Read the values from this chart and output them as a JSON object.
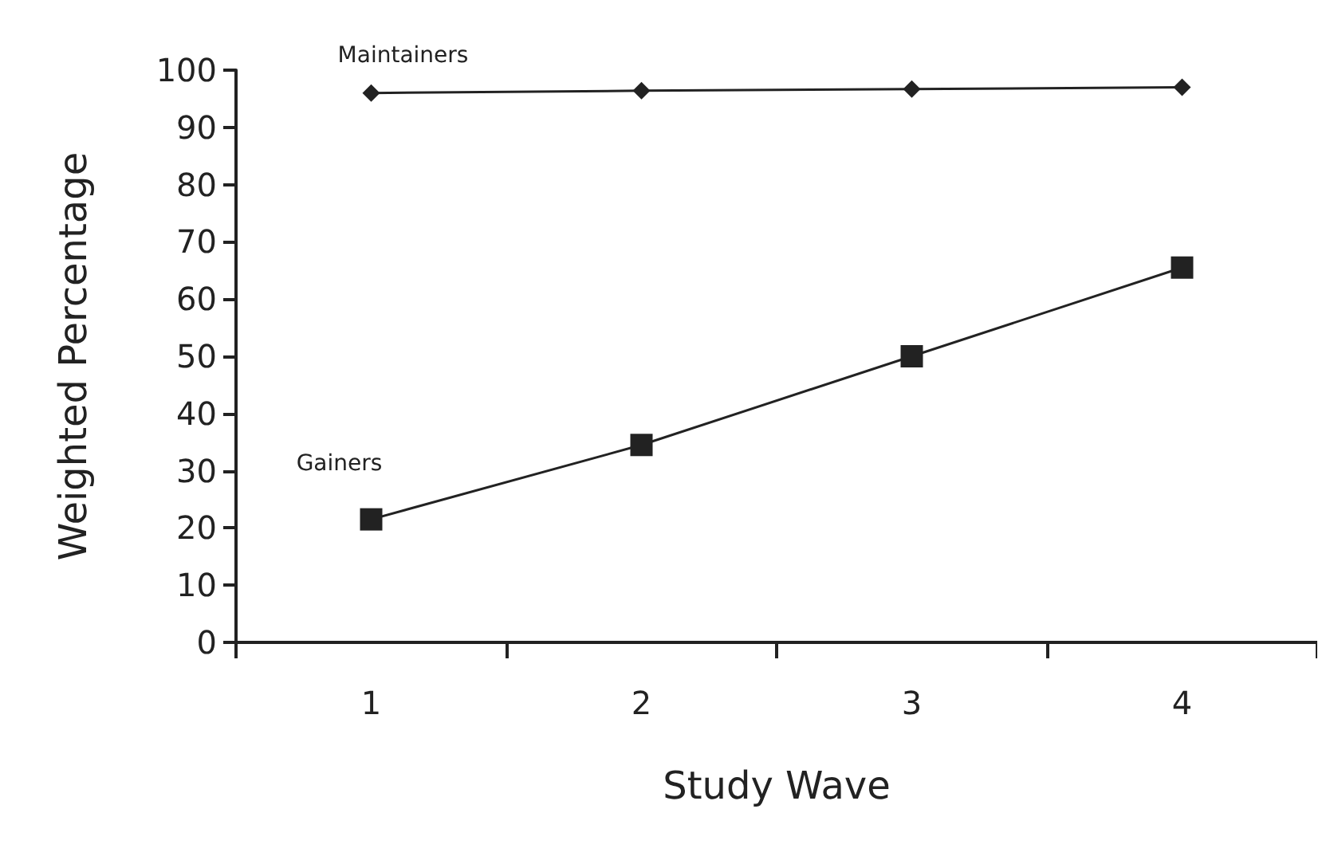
{
  "chart_data": {
    "type": "line",
    "xlabel": "Study Wave",
    "ylabel": "Weighted Percentage",
    "categories": [
      "1",
      "2",
      "3",
      "4"
    ],
    "series": [
      {
        "name": "Maintainers",
        "color": "#222222",
        "marker": "diamond",
        "values": [
          96,
          96.4,
          96.7,
          97
        ]
      },
      {
        "name": "Gainers",
        "color": "#222222",
        "marker": "square",
        "values": [
          21.5,
          34.5,
          50,
          65.5
        ]
      }
    ],
    "ylim": [
      0,
      100
    ],
    "yticks": [
      0,
      10,
      20,
      30,
      40,
      50,
      60,
      70,
      80,
      90,
      100
    ],
    "grid": false,
    "legend": false,
    "line_style": "solid"
  }
}
